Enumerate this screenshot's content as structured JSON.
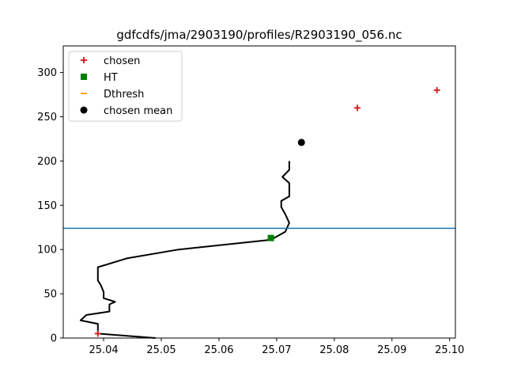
{
  "chart_data": {
    "type": "line",
    "title": "gdfcdfs/jma/2903190/profiles/R2903190_056.nc",
    "xlim": [
      25.033,
      25.101
    ],
    "ylim": [
      0,
      330
    ],
    "x_ticks": [
      "25.04",
      "25.05",
      "25.06",
      "25.07",
      "25.08",
      "25.09",
      "25.10"
    ],
    "x_tick_values": [
      25.04,
      25.05,
      25.06,
      25.07,
      25.08,
      25.09,
      25.1
    ],
    "y_ticks": [
      "0",
      "50",
      "100",
      "150",
      "200",
      "250",
      "300"
    ],
    "y_tick_values": [
      0,
      50,
      100,
      150,
      200,
      250,
      300
    ],
    "profile_line": {
      "color": "#000000",
      "points": [
        [
          25.049,
          0
        ],
        [
          25.039,
          5
        ],
        [
          25.039,
          16
        ],
        [
          25.036,
          20
        ],
        [
          25.037,
          26
        ],
        [
          25.041,
          30
        ],
        [
          25.041,
          38
        ],
        [
          25.042,
          41
        ],
        [
          25.04,
          45
        ],
        [
          25.04,
          52
        ],
        [
          25.0395,
          60
        ],
        [
          25.039,
          65
        ],
        [
          25.039,
          80
        ],
        [
          25.044,
          90
        ],
        [
          25.053,
          100
        ],
        [
          25.069,
          111
        ],
        [
          25.0715,
          120
        ],
        [
          25.0722,
          130
        ],
        [
          25.0715,
          140
        ],
        [
          25.0708,
          148
        ],
        [
          25.0708,
          155
        ],
        [
          25.0722,
          160
        ],
        [
          25.0722,
          175
        ],
        [
          25.071,
          182
        ],
        [
          25.0722,
          190
        ],
        [
          25.0722,
          200
        ]
      ]
    },
    "series": [
      {
        "name": "chosen",
        "marker": "plus",
        "color": "#d62728",
        "points": [
          [
            25.039,
            5
          ],
          [
            25.084,
            260
          ],
          [
            25.0978,
            280
          ]
        ]
      },
      {
        "name": "HT",
        "marker": "square",
        "color": "#008000",
        "points": [
          [
            25.069,
            113
          ]
        ]
      },
      {
        "name": "Dthresh",
        "marker": "hline",
        "color": "#ffa500",
        "points": []
      },
      {
        "name": "chosen mean",
        "marker": "circle",
        "color": "#000000",
        "points": [
          [
            25.0743,
            221
          ]
        ]
      }
    ],
    "hline": {
      "y": 124,
      "color": "#1f77b4"
    },
    "legend": {
      "position": "upper-left"
    }
  }
}
